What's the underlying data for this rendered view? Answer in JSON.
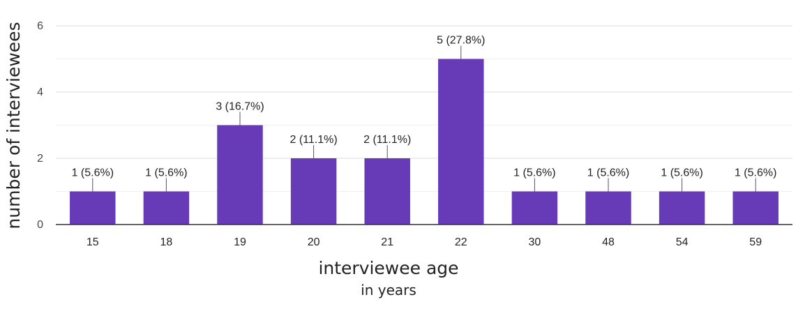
{
  "chart_data": {
    "type": "bar",
    "categories": [
      "15",
      "18",
      "19",
      "20",
      "21",
      "22",
      "30",
      "48",
      "54",
      "59"
    ],
    "values": [
      1,
      1,
      3,
      2,
      2,
      5,
      1,
      1,
      1,
      1
    ],
    "data_labels": [
      "1 (5.6%)",
      "1 (5.6%)",
      "3 (16.7%)",
      "2 (11.1%)",
      "2 (11.1%)",
      "5 (27.8%)",
      "1 (5.6%)",
      "1 (5.6%)",
      "1 (5.6%)",
      "1 (5.6%)"
    ],
    "ylabel": "number of interviewees",
    "xlabel": "interviewee age",
    "xlabel_sub": "in years",
    "ylim": [
      0,
      6
    ],
    "yticks": [
      0,
      2,
      4,
      6
    ],
    "grid": true,
    "bar_color": "#673ab7"
  }
}
